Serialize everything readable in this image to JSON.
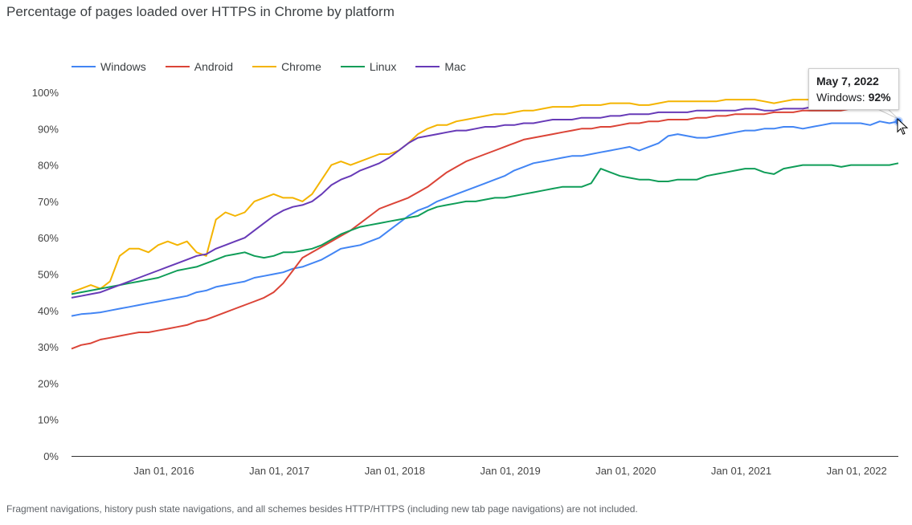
{
  "chart_data": {
    "type": "line",
    "title": "Percentage of pages loaded over HTTPS in Chrome by platform",
    "xlabel": "",
    "ylabel": "",
    "x_range": [
      "2015-03",
      "2022-05"
    ],
    "ylim": [
      0,
      100
    ],
    "y_ticks": [
      "0%",
      "10%",
      "20%",
      "30%",
      "40%",
      "50%",
      "60%",
      "70%",
      "80%",
      "90%",
      "100%"
    ],
    "y_tick_values": [
      0,
      10,
      20,
      30,
      40,
      50,
      60,
      70,
      80,
      90,
      100
    ],
    "x_ticks": [
      "Jan 01, 2016",
      "Jan 01, 2017",
      "Jan 01, 2018",
      "Jan 01, 2019",
      "Jan 01, 2020",
      "Jan 01, 2021",
      "Jan 01, 2022"
    ],
    "x_tick_values": [
      2016.0,
      2017.0,
      2018.0,
      2019.0,
      2020.0,
      2021.0,
      2022.0
    ],
    "grid": false,
    "legend_position": "top-left",
    "x_start": 2015.2,
    "x_step_years": 0.08333,
    "series": [
      {
        "name": "Windows",
        "color": "#4285f4",
        "values": [
          38.5,
          39,
          39.2,
          39.5,
          40,
          40.5,
          41,
          41.5,
          42,
          42.5,
          43,
          43.5,
          44,
          45,
          45.5,
          46.5,
          47,
          47.5,
          48,
          49,
          49.5,
          50,
          50.5,
          51.5,
          52,
          53,
          54,
          55.5,
          57,
          57.5,
          58,
          59,
          60,
          62,
          64,
          66,
          67.5,
          68.5,
          70,
          71,
          72,
          73,
          74,
          75,
          76,
          77,
          78.5,
          79.5,
          80.5,
          81,
          81.5,
          82,
          82.5,
          82.5,
          83,
          83.5,
          84,
          84.5,
          85,
          84,
          85,
          86,
          88,
          88.5,
          88,
          87.5,
          87.5,
          88,
          88.5,
          89,
          89.5,
          89.5,
          90,
          90,
          90.5,
          90.5,
          90,
          90.5,
          91,
          91.5,
          91.5,
          91.5,
          91.5,
          91,
          92,
          91.5,
          92
        ]
      },
      {
        "name": "Android",
        "color": "#db4437",
        "values": [
          29.5,
          30.5,
          31,
          32,
          32.5,
          33,
          33.5,
          34,
          34,
          34.5,
          35,
          35.5,
          36,
          37,
          37.5,
          38.5,
          39.5,
          40.5,
          41.5,
          42.5,
          43.5,
          45,
          47.5,
          51,
          54.5,
          56,
          57.5,
          59,
          60.5,
          62,
          64,
          66,
          68,
          69,
          70,
          71,
          72.5,
          74,
          76,
          78,
          79.5,
          81,
          82,
          83,
          84,
          85,
          86,
          87,
          87.5,
          88,
          88.5,
          89,
          89.5,
          90,
          90,
          90.5,
          90.5,
          91,
          91.5,
          91.5,
          92,
          92,
          92.5,
          92.5,
          92.5,
          93,
          93,
          93.5,
          93.5,
          94,
          94,
          94,
          94,
          94.5,
          94.5,
          94.5,
          95,
          95,
          95,
          95,
          95,
          95.5,
          95.5,
          95.5,
          95.5,
          95.5,
          95.5
        ]
      },
      {
        "name": "Chrome",
        "color": "#f4b400",
        "values": [
          45,
          46,
          47,
          46,
          48,
          55,
          57,
          57,
          56,
          58,
          59,
          58,
          59,
          56,
          55,
          65,
          67,
          66,
          67,
          70,
          71,
          72,
          71,
          71,
          70,
          72,
          76,
          80,
          81,
          80,
          81,
          82,
          83,
          83,
          84,
          86,
          88.5,
          90,
          91,
          91,
          92,
          92.5,
          93,
          93.5,
          94,
          94,
          94.5,
          95,
          95,
          95.5,
          96,
          96,
          96,
          96.5,
          96.5,
          96.5,
          97,
          97,
          97,
          96.5,
          96.5,
          97,
          97.5,
          97.5,
          97.5,
          97.5,
          97.5,
          97.5,
          98,
          98,
          98,
          98,
          97.5,
          97,
          97.5,
          98,
          98,
          98,
          97,
          97.5,
          97.5,
          97.5,
          97.5,
          97,
          97,
          97.5,
          97.5
        ]
      },
      {
        "name": "Linux",
        "color": "#0f9d58",
        "values": [
          44.5,
          45,
          45.5,
          46,
          46.5,
          47,
          47.5,
          48,
          48.5,
          49,
          50,
          51,
          51.5,
          52,
          53,
          54,
          55,
          55.5,
          56,
          55,
          54.5,
          55,
          56,
          56,
          56.5,
          57,
          58,
          59.5,
          61,
          62,
          63,
          63.5,
          64,
          64.5,
          65,
          65.5,
          66,
          67.5,
          68.5,
          69,
          69.5,
          70,
          70,
          70.5,
          71,
          71,
          71.5,
          72,
          72.5,
          73,
          73.5,
          74,
          74,
          74,
          75,
          79,
          78,
          77,
          76.5,
          76,
          76,
          75.5,
          75.5,
          76,
          76,
          76,
          77,
          77.5,
          78,
          78.5,
          79,
          79,
          78,
          77.5,
          79,
          79.5,
          80,
          80,
          80,
          80,
          79.5,
          80,
          80,
          80,
          80,
          80,
          80.5
        ]
      },
      {
        "name": "Mac",
        "color": "#673ab7",
        "values": [
          43.5,
          44,
          44.5,
          45,
          46,
          47,
          48,
          49,
          50,
          51,
          52,
          53,
          54,
          55,
          55.5,
          57,
          58,
          59,
          60,
          62,
          64,
          66,
          67.5,
          68.5,
          69,
          70,
          72,
          74.5,
          76,
          77,
          78.5,
          79.5,
          80.5,
          82,
          84,
          86,
          87.5,
          88,
          88.5,
          89,
          89.5,
          89.5,
          90,
          90.5,
          90.5,
          91,
          91,
          91.5,
          91.5,
          92,
          92.5,
          92.5,
          92.5,
          93,
          93,
          93,
          93.5,
          93.5,
          94,
          94,
          94,
          94.5,
          94.5,
          94.5,
          94.5,
          95,
          95,
          95,
          95,
          95,
          95.5,
          95.5,
          95,
          95,
          95.5,
          95.5,
          95.5,
          96,
          96,
          96,
          96,
          96,
          96,
          96,
          96,
          96,
          96
        ]
      }
    ],
    "tooltip": {
      "date": "May 7, 2022",
      "series": "Windows",
      "label": "Windows: ",
      "value": "92%"
    }
  },
  "page": {
    "title": "Percentage of pages loaded over HTTPS in Chrome by platform",
    "footnote": "Fragment navigations, history push state navigations, and all schemes besides HTTP/HTTPS (including new tab page navigations) are not included."
  },
  "legend": [
    {
      "label": "Windows",
      "color": "#4285f4"
    },
    {
      "label": "Android",
      "color": "#db4437"
    },
    {
      "label": "Chrome",
      "color": "#f4b400"
    },
    {
      "label": "Linux",
      "color": "#0f9d58"
    },
    {
      "label": "Mac",
      "color": "#673ab7"
    }
  ]
}
